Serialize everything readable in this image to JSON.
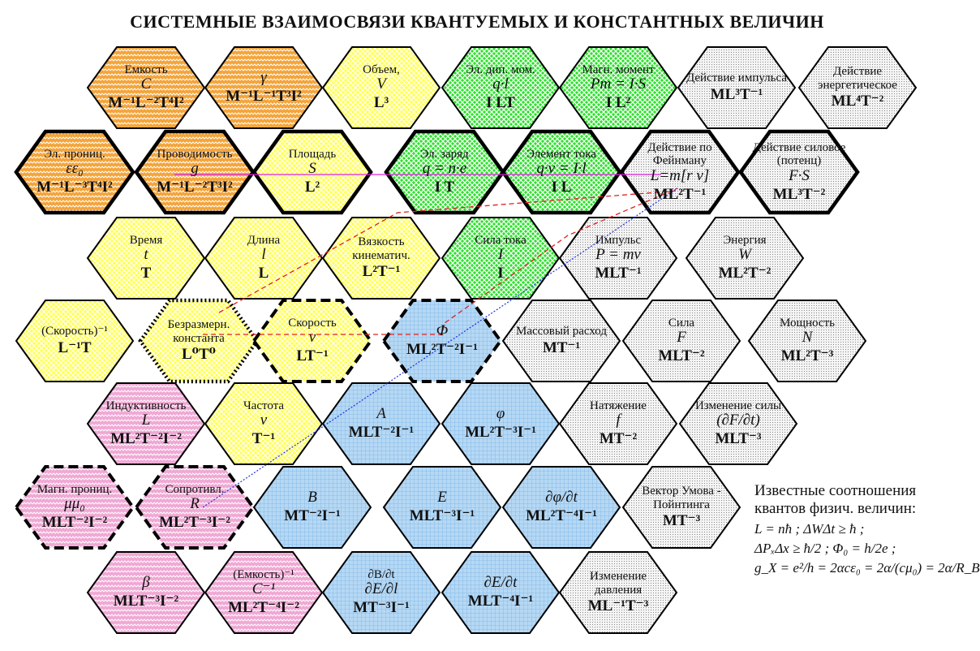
{
  "title": "СИСТЕМНЫЕ ВЗАИМОСВЯЗИ КВАНТУЕМЫХ И КОНСТАНТНЫХ ВЕЛИЧИН",
  "colors": {
    "orange": "#f4a43a",
    "yellow": "#ffff55",
    "green": "#2ee02e",
    "white": "#cfcfcf",
    "blue": "#9ccbf0",
    "pink": "#f0a8d4"
  },
  "hexes": [
    {
      "label": "Емкость",
      "symbol": "C",
      "dims": "M⁻¹L⁻²T⁴I²",
      "fill": "orange",
      "border": "normal"
    },
    {
      "label": "",
      "symbol": "γ",
      "dims": "M⁻¹L⁻¹T³I²",
      "fill": "orange",
      "border": "normal"
    },
    {
      "label": "Объем,",
      "symbol": "V",
      "dims": "L³",
      "fill": "yellow",
      "border": "normal"
    },
    {
      "label": "Эл. дип. мом.",
      "symbol": "q·l",
      "dims": "I LT",
      "fill": "green",
      "border": "normal"
    },
    {
      "label": "Магн. момент",
      "symbol": "Pm = I·S",
      "dims": "I L²",
      "fill": "green",
      "border": "normal"
    },
    {
      "label": "Действие импульса",
      "symbol": "",
      "dims": "ML³T⁻¹",
      "fill": "white",
      "border": "normal"
    },
    {
      "label": "Действие энергетическое",
      "symbol": "",
      "dims": "ML⁴T⁻²",
      "fill": "white",
      "border": "normal"
    },
    {
      "label": "Эл. прониц.",
      "symbol": "εε₀",
      "dims": "M⁻¹L⁻³T⁴I²",
      "fill": "orange",
      "border": "thick"
    },
    {
      "label": "Проводимость",
      "symbol": "g",
      "dims": "M⁻¹L⁻²T³I²",
      "fill": "orange",
      "border": "thick"
    },
    {
      "label": "Площадь",
      "symbol": "S",
      "dims": "L²",
      "fill": "yellow",
      "border": "thick"
    },
    {
      "label": "Эл. заряд",
      "symbol": "q = n·e",
      "dims": "I T",
      "fill": "green",
      "border": "thick"
    },
    {
      "label": "Элемент тока",
      "symbol": "q·v = I·l",
      "dims": "I L",
      "fill": "green",
      "border": "thick"
    },
    {
      "label": "Действие по Фейнману",
      "symbol": "L=m[r v]",
      "dims": "ML²T⁻¹",
      "fill": "white",
      "border": "thick"
    },
    {
      "label": "Действие силовое (потенц)",
      "symbol": "F·S",
      "dims": "ML³T⁻²",
      "fill": "white",
      "border": "thick"
    },
    {
      "label": "Время",
      "symbol": "t",
      "dims": "T",
      "fill": "yellow",
      "border": "normal"
    },
    {
      "label": "Длина",
      "symbol": "l",
      "dims": "L",
      "fill": "yellow",
      "border": "normal"
    },
    {
      "label": "Вязкость кинематич.",
      "symbol": "",
      "dims": "L²T⁻¹",
      "fill": "yellow",
      "border": "normal"
    },
    {
      "label": "Сила тока",
      "symbol": "I",
      "dims": "I",
      "fill": "green",
      "border": "normal"
    },
    {
      "label": "Импульс",
      "symbol": "P = mv",
      "dims": "MLT⁻¹",
      "fill": "white",
      "border": "normal"
    },
    {
      "label": "Энергия",
      "symbol": "W",
      "dims": "ML²T⁻²",
      "fill": "white",
      "border": "normal"
    },
    {
      "label": "(Скорость)⁻¹",
      "symbol": "",
      "dims": "L⁻¹T",
      "fill": "yellow",
      "border": "normal"
    },
    {
      "label": "Безразмерн. константа",
      "symbol": "",
      "dims": "L⁰T⁰",
      "fill": "yellow",
      "border": "dotted"
    },
    {
      "label": "Скорость",
      "symbol": "v",
      "dims": "LT⁻¹",
      "fill": "yellow",
      "border": "dashed"
    },
    {
      "label": "",
      "symbol": "Φ",
      "dims": "ML²T⁻²I⁻¹",
      "fill": "blue",
      "border": "dashed"
    },
    {
      "label": "Массовый расход",
      "symbol": "",
      "dims": "MT⁻¹",
      "fill": "white",
      "border": "normal"
    },
    {
      "label": "Сила",
      "symbol": "F",
      "dims": "MLT⁻²",
      "fill": "white",
      "border": "normal"
    },
    {
      "label": "Мощность",
      "symbol": "N",
      "dims": "ML²T⁻³",
      "fill": "white",
      "border": "normal"
    },
    {
      "label": "Индуктивность",
      "symbol": "L",
      "dims": "ML²T⁻²I⁻²",
      "fill": "pink",
      "border": "normal"
    },
    {
      "label": "Частота",
      "symbol": "ν",
      "dims": "T⁻¹",
      "fill": "yellow",
      "border": "normal"
    },
    {
      "label": "",
      "symbol": "A",
      "dims": "MLT⁻²I⁻¹",
      "fill": "blue",
      "border": "normal"
    },
    {
      "label": "",
      "symbol": "φ",
      "dims": "ML²T⁻³I⁻¹",
      "fill": "blue",
      "border": "normal"
    },
    {
      "label": "Натяжение",
      "symbol": "f",
      "dims": "MT⁻²",
      "fill": "white",
      "border": "normal"
    },
    {
      "label": "Изменение силы",
      "symbol": "(∂F/∂t)",
      "dims": "MLT⁻³",
      "fill": "white",
      "border": "normal"
    },
    {
      "label": "Магн. прониц.",
      "symbol": "μμ₀",
      "dims": "MLT⁻²I⁻²",
      "fill": "pink",
      "border": "dashed"
    },
    {
      "label": "Сопротивл.",
      "symbol": "R",
      "dims": "ML²T⁻³I⁻²",
      "fill": "pink",
      "border": "dashed"
    },
    {
      "label": "",
      "symbol": "B",
      "dims": "MT⁻²I⁻¹",
      "fill": "blue",
      "border": "normal"
    },
    {
      "label": "",
      "symbol": "E",
      "dims": "MLT⁻³I⁻¹",
      "fill": "blue",
      "border": "normal"
    },
    {
      "label": "",
      "symbol": "∂φ/∂t",
      "dims": "ML²T⁻⁴I⁻¹",
      "fill": "blue",
      "border": "normal"
    },
    {
      "label": "Вектор Умова - Пойнтинга",
      "symbol": "",
      "dims": "MT⁻³",
      "fill": "white",
      "border": "normal"
    },
    {
      "label": "",
      "symbol": "β",
      "dims": "MLT⁻³I⁻²",
      "fill": "pink",
      "border": "normal"
    },
    {
      "label": "(Емкость)⁻¹",
      "symbol": "C⁻¹",
      "dims": "ML²T⁻⁴I⁻²",
      "fill": "pink",
      "border": "normal"
    },
    {
      "label": "∂B/∂t",
      "symbol": "∂E/∂l",
      "dims": "MT⁻³I⁻¹",
      "fill": "blue",
      "border": "normal"
    },
    {
      "label": "",
      "symbol": "∂E/∂t",
      "dims": "MLT⁻⁴I⁻¹",
      "fill": "blue",
      "border": "normal"
    },
    {
      "label": "Изменение давления",
      "symbol": "",
      "dims": "ML⁻¹T⁻³",
      "fill": "white",
      "border": "normal"
    }
  ],
  "notes": {
    "heading": "Известные соотношения квантов физич. величин:",
    "formulas": [
      "L = nħ ;   ΔWΔt ≥ ħ ;",
      "ΔPₓΔx ≥ ħ/2 ;  Φ₀ = h/2e ;",
      "g_X = e²/h = 2αcε₀ = 2α/(cμ₀) = 2α/R_B"
    ]
  }
}
